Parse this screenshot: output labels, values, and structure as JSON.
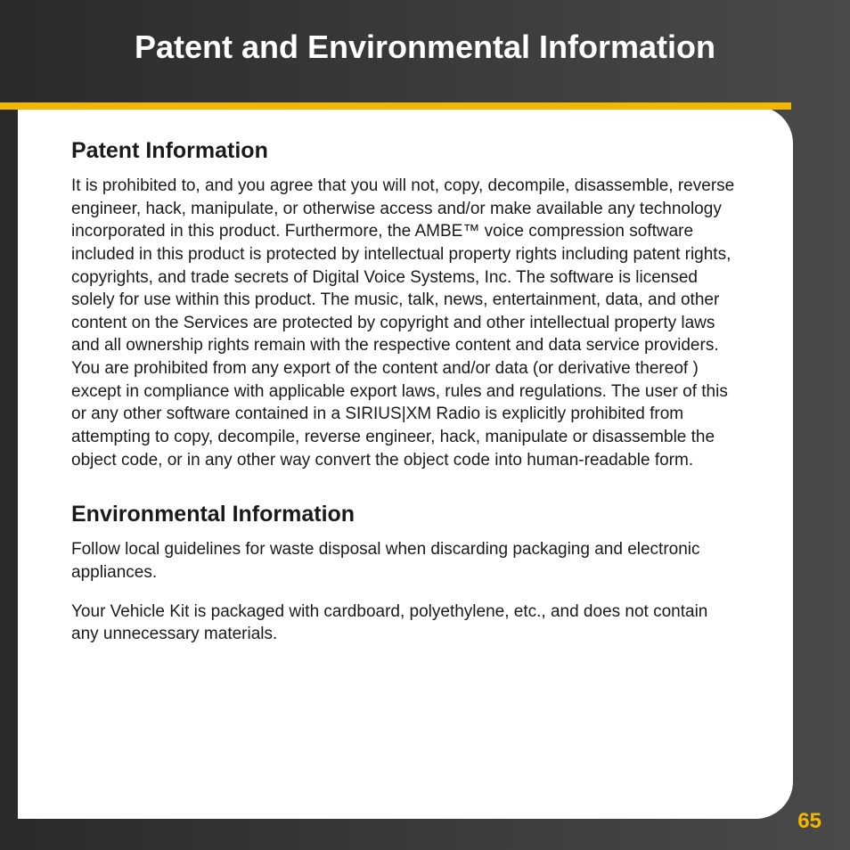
{
  "title": "Patent and Environmental Information",
  "page_number": "65",
  "accent_color": "#f3b700",
  "sections": {
    "patent": {
      "heading": "Patent Information",
      "body": "It is prohibited to, and you agree that you will not, copy, decompile, disassemble, reverse engineer, hack, manipulate, or otherwise access and/or make available any technology incorporated in this product. Furthermore, the AMBE™ voice compression software included in this product is protected by intellectual property rights including patent rights, copyrights, and trade secrets of Digital Voice Systems, Inc. The software is licensed solely for use within this product. The music, talk, news, entertainment, data, and other content on the Services are protected by copyright and other intellectual property laws and all ownership rights remain with the respective content and data service providers. You are prohibited from any export of the content and/or data (or derivative thereof ) except in compliance with applicable export laws, rules and regulations. The user of this or any other software contained in a SIRIUS|XM Radio is explicitly prohibited from attempting to copy, decompile, reverse engineer, hack, manipulate or disassemble the object code, or in any other way convert the object code into human-readable form."
    },
    "environmental": {
      "heading": "Environmental Information",
      "body1": "Follow local guidelines for waste disposal when discarding packaging and electronic appliances.",
      "body2": "Your Vehicle Kit is packaged with cardboard, polyethylene, etc., and does not contain any unnecessary materials."
    }
  }
}
